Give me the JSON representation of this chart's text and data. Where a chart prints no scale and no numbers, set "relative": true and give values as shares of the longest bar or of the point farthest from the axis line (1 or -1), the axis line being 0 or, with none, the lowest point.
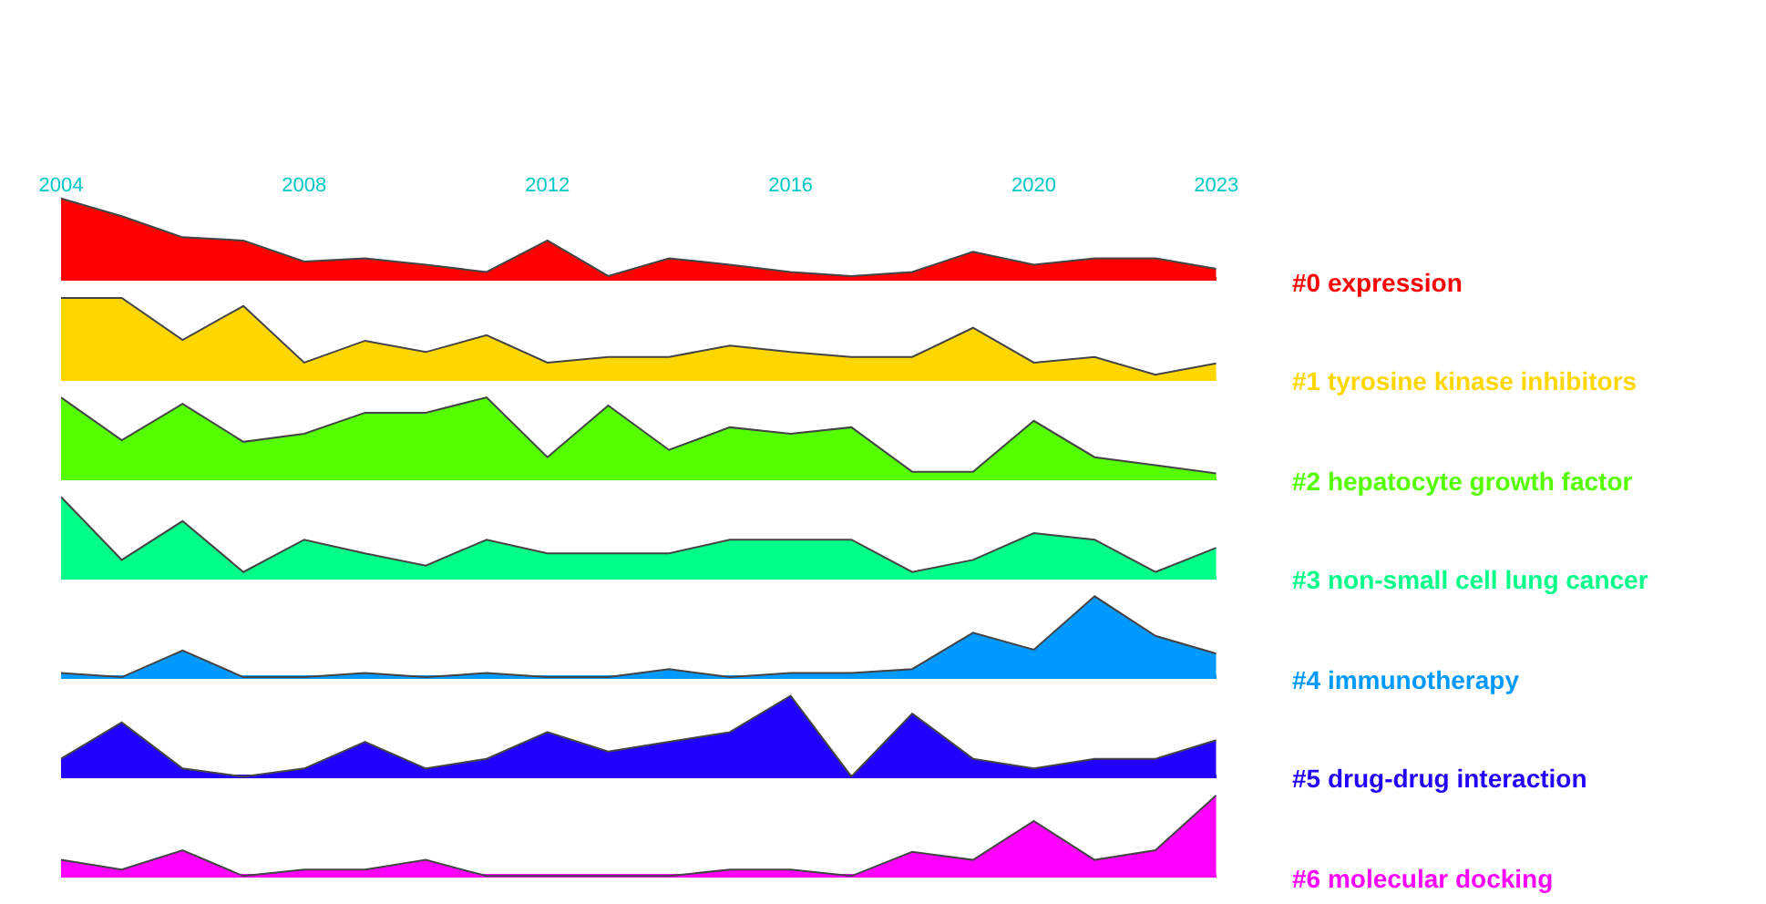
{
  "chart_data": [
    {
      "type": "area",
      "relative": true,
      "x": [
        2004,
        2005,
        2006,
        2007,
        2008,
        2009,
        2010,
        2011,
        2012,
        2013,
        2014,
        2015,
        2016,
        2017,
        2018,
        2019,
        2020,
        2021,
        2022,
        2023
      ],
      "xlim": [
        2004,
        2023
      ],
      "xticks": [
        2004,
        2008,
        2012,
        2016,
        2020,
        2023
      ],
      "tick_labels": "x",
      "series": [
        {
          "name": "#0 expression",
          "color": "#ff0000",
          "values": [
            1,
            0.78,
            0.52,
            0.48,
            0.22,
            0.26,
            0.18,
            0.09,
            0.48,
            0.04,
            0.26,
            0.18,
            0.09,
            0.04,
            0.09,
            0.34,
            0.18,
            0.26,
            0.26,
            0.13
          ]
        }
      ]
    },
    {
      "type": "area",
      "relative": true,
      "x": [
        2004,
        2005,
        2006,
        2007,
        2008,
        2009,
        2010,
        2011,
        2012,
        2013,
        2014,
        2015,
        2016,
        2017,
        2018,
        2019,
        2020,
        2021,
        2022,
        2023
      ],
      "tick_labels": false,
      "series": [
        {
          "name": "#1 tyrosine kinase inhibitors",
          "color": "#ffd700",
          "values": [
            1,
            1,
            0.48,
            0.9,
            0.2,
            0.47,
            0.33,
            0.54,
            0.2,
            0.27,
            0.27,
            0.41,
            0.33,
            0.27,
            0.27,
            0.63,
            0.2,
            0.27,
            0.05,
            0.19
          ]
        }
      ]
    },
    {
      "type": "area",
      "relative": true,
      "x": [
        2004,
        2005,
        2006,
        2007,
        2008,
        2009,
        2010,
        2011,
        2012,
        2013,
        2014,
        2015,
        2016,
        2017,
        2018,
        2019,
        2020,
        2021,
        2022,
        2023
      ],
      "tick_labels": false,
      "series": [
        {
          "name": "#2 hepatocyte growth factor",
          "color": "#55ff00",
          "values": [
            1,
            0.47,
            0.92,
            0.45,
            0.55,
            0.81,
            0.81,
            1,
            0.26,
            0.9,
            0.35,
            0.63,
            0.55,
            0.63,
            0.08,
            0.08,
            0.71,
            0.26,
            0.16,
            0.06
          ]
        }
      ]
    },
    {
      "type": "area",
      "relative": true,
      "x": [
        2004,
        2005,
        2006,
        2007,
        2008,
        2009,
        2010,
        2011,
        2012,
        2013,
        2014,
        2015,
        2016,
        2017,
        2018,
        2019,
        2020,
        2021,
        2022,
        2023
      ],
      "tick_labels": false,
      "series": [
        {
          "name": "#3 non-small cell lung cancer",
          "color": "#00ff88",
          "values": [
            1,
            0.22,
            0.7,
            0.07,
            0.47,
            0.3,
            0.15,
            0.47,
            0.3,
            0.3,
            0.3,
            0.47,
            0.47,
            0.47,
            0.07,
            0.22,
            0.55,
            0.47,
            0.07,
            0.37
          ]
        }
      ]
    },
    {
      "type": "area",
      "relative": true,
      "x": [
        2004,
        2005,
        2006,
        2007,
        2008,
        2009,
        2010,
        2011,
        2012,
        2013,
        2014,
        2015,
        2016,
        2017,
        2018,
        2019,
        2020,
        2021,
        2022,
        2023
      ],
      "tick_labels": false,
      "series": [
        {
          "name": "#4 immunotherapy",
          "color": "#0099ff",
          "values": [
            0.05,
            0,
            0.33,
            0,
            0,
            0.05,
            0,
            0.05,
            0,
            0,
            0.1,
            0,
            0.05,
            0.05,
            0.1,
            0.55,
            0.34,
            1,
            0.51,
            0.29
          ]
        }
      ]
    },
    {
      "type": "area",
      "relative": true,
      "x": [
        2004,
        2005,
        2006,
        2007,
        2008,
        2009,
        2010,
        2011,
        2012,
        2013,
        2014,
        2015,
        2016,
        2017,
        2018,
        2019,
        2020,
        2021,
        2022,
        2023
      ],
      "tick_labels": false,
      "series": [
        {
          "name": "#5 drug-drug interaction",
          "color": "#2200ff",
          "values": [
            0.22,
            0.67,
            0.1,
            0,
            0.1,
            0.43,
            0.1,
            0.22,
            0.55,
            0.31,
            0.43,
            0.55,
            1,
            0,
            0.78,
            0.22,
            0.1,
            0.22,
            0.22,
            0.45
          ]
        }
      ]
    },
    {
      "type": "area",
      "relative": true,
      "x": [
        2004,
        2005,
        2006,
        2007,
        2008,
        2009,
        2010,
        2011,
        2012,
        2013,
        2014,
        2015,
        2016,
        2017,
        2018,
        2019,
        2020,
        2021,
        2022,
        2023
      ],
      "tick_labels": false,
      "series": [
        {
          "name": "#6 molecular docking",
          "color": "#ff00ff",
          "values": [
            0.2,
            0.08,
            0.32,
            0,
            0.08,
            0.08,
            0.2,
            0,
            0,
            0,
            0,
            0.08,
            0.08,
            0,
            0.3,
            0.2,
            0.68,
            0.2,
            0.32,
            1
          ]
        }
      ]
    }
  ]
}
